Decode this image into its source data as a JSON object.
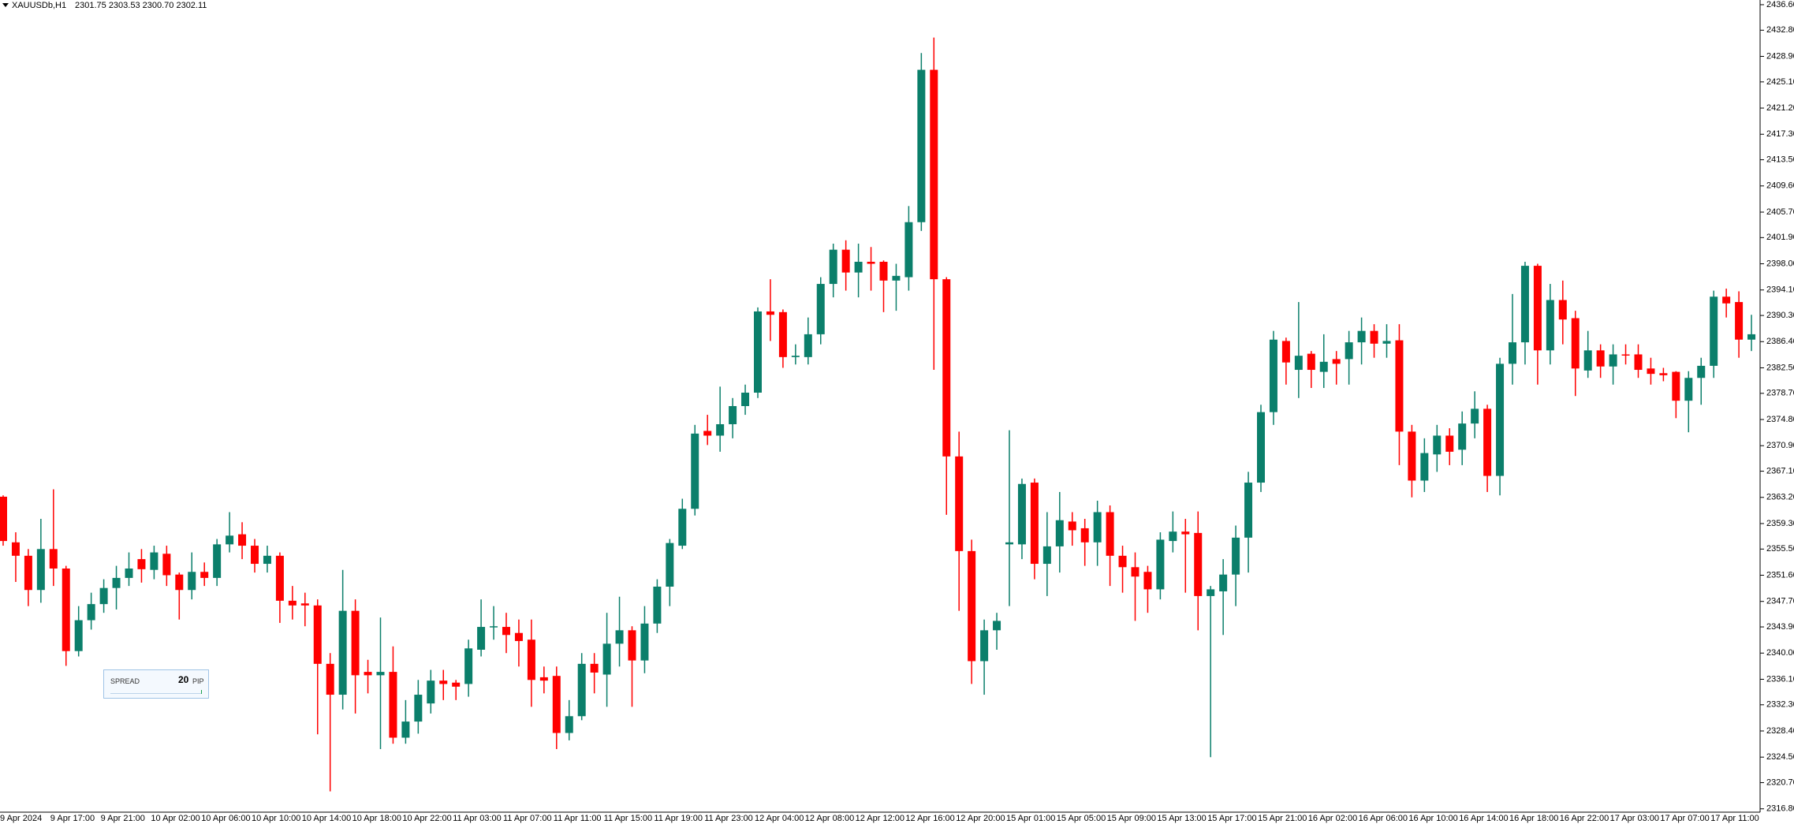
{
  "chart_data": {
    "type": "candlestick",
    "title": "XAUUSDb,H1",
    "header_quote": "2301.75 2303.53 2300.70 2302.11",
    "spread_widget": {
      "label": "SPREAD",
      "value": "20",
      "unit": "PIP"
    },
    "up_color": "#0b7f6b",
    "down_color": "#ff0000",
    "categories": [
      "9 Apr 2024",
      null,
      null,
      null,
      "9 Apr 17:00",
      null,
      null,
      null,
      "9 Apr 21:00",
      null,
      null,
      null,
      "10 Apr 02:00",
      null,
      null,
      null,
      "10 Apr 06:00",
      null,
      null,
      null,
      "10 Apr 10:00",
      null,
      null,
      null,
      "10 Apr 14:00",
      null,
      null,
      null,
      "10 Apr 18:00",
      null,
      null,
      null,
      "10 Apr 22:00",
      null,
      null,
      null,
      "11 Apr 03:00",
      null,
      null,
      null,
      "11 Apr 07:00",
      null,
      null,
      null,
      "11 Apr 11:00",
      null,
      null,
      null,
      "11 Apr 15:00",
      null,
      null,
      null,
      "11 Apr 19:00",
      null,
      null,
      null,
      "11 Apr 23:00",
      null,
      null,
      null,
      "12 Apr 04:00",
      null,
      null,
      null,
      "12 Apr 08:00",
      null,
      null,
      null,
      "12 Apr 12:00",
      null,
      null,
      null,
      "12 Apr 16:00",
      null,
      null,
      null,
      "12 Apr 20:00",
      null,
      null,
      null,
      "15 Apr 01:00",
      null,
      null,
      null,
      "15 Apr 05:00",
      null,
      null,
      null,
      "15 Apr 09:00",
      null,
      null,
      null,
      "15 Apr 13:00",
      null,
      null,
      null,
      "15 Apr 17:00",
      null,
      null,
      null,
      "15 Apr 21:00",
      null,
      null,
      null,
      "16 Apr 02:00",
      null,
      null,
      null,
      "16 Apr 06:00",
      null,
      null,
      null,
      "16 Apr 10:00",
      null,
      null,
      null,
      "16 Apr 14:00",
      null,
      null,
      null,
      "16 Apr 18:00",
      null,
      null,
      null,
      "16 Apr 22:00",
      null,
      null,
      null,
      "17 Apr 03:00",
      null,
      null,
      null,
      "17 Apr 07:00",
      null,
      null,
      null,
      "17 Apr 11:00",
      null,
      null,
      null
    ],
    "open": [
      2363.3,
      2356.5,
      2354.5,
      2349.4,
      2355.5,
      2352.6,
      2340.3,
      2344.9,
      2347.3,
      2349.7,
      2351.2,
      2354,
      2352.4,
      2354.8,
      2351.7,
      2349.4,
      2352.1,
      2351.2,
      2356.2,
      2357.7,
      2356,
      2353.3,
      2354.5,
      2347.8,
      2347.4,
      2347.1,
      2338.4,
      2333.8,
      2346.3,
      2337.2,
      2336.7,
      2337.2,
      2327.4,
      2329.8,
      2332.5,
      2335.9,
      2335.6,
      2335.4,
      2340.5,
      2343.9,
      2343.9,
      2343,
      2342,
      2336.4,
      2336.6,
      2328.1,
      2330.6,
      2338.4,
      2336.8,
      2341.4,
      2343.4,
      2338.9,
      2344.4,
      2349.9,
      2356,
      2361.5,
      2373.1,
      2372.4,
      2374.1,
      2376.8,
      2378.8,
      2390.9,
      2390.8,
      2384.1,
      2384.1,
      2387.5,
      2395,
      2400.1,
      2396.7,
      2398.3,
      2398.3,
      2395.5,
      2396,
      2404.2,
      2426.9,
      2395.7,
      2369.3,
      2355.2,
      2338.8,
      2343.4,
      2356.2,
      2356.2,
      2365.4,
      2353.3,
      2355.9,
      2359.6,
      2358.6,
      2356.5,
      2361,
      2354.5,
      2352.8,
      2352.1,
      2349.5,
      2356.7,
      2358.1,
      2357.9,
      2348.5,
      2349.2,
      2351.7,
      2357.2,
      2365.4,
      2375.9,
      2386.5,
      2382.2,
      2384.6,
      2381.9,
      2383.8,
      2383.8,
      2386.3,
      2388,
      2386.1,
      2386.6,
      2373,
      2365.7,
      2369.6,
      2372.4,
      2370.3,
      2374.2,
      2376.4,
      2366.4,
      2383.1,
      2386.3,
      2397.7,
      2385.1,
      2392.6,
      2389.9,
      2382.1,
      2385.1,
      2382.7,
      2384.5,
      2384.5,
      2382.4,
      2381.7,
      2381.9,
      2377.6,
      2381,
      2382.8,
      2393.1,
      2392.3,
      2386.7
    ],
    "high": [
      2363.5,
      2358,
      2355.5,
      2360,
      2364.4,
      2353,
      2347,
      2349,
      2351,
      2353,
      2355,
      2355.5,
      2356,
      2356,
      2352,
      2355,
      2353.5,
      2357,
      2361,
      2359.5,
      2357,
      2356,
      2355,
      2350,
      2349,
      2348,
      2340,
      2352.4,
      2348,
      2339,
      2345.3,
      2341,
      2333,
      2336,
      2337.5,
      2337.5,
      2336,
      2342,
      2348,
      2347,
      2346,
      2345,
      2345,
      2338,
      2338,
      2333,
      2340,
      2340,
      2346,
      2348.4,
      2344,
      2347,
      2351,
      2357,
      2363,
      2374,
      2375.5,
      2379.7,
      2378,
      2380,
      2391.5,
      2395.7,
      2391.2,
      2386,
      2390,
      2396,
      2401,
      2401.5,
      2401,
      2400.5,
      2398.5,
      2398,
      2406.6,
      2429.4,
      2431.7,
      2396,
      2373,
      2356.9,
      2345,
      2346,
      2373.2,
      2366,
      2366,
      2361,
      2364,
      2361,
      2360,
      2362.7,
      2362,
      2356,
      2355,
      2353,
      2358,
      2361.1,
      2360,
      2361.1,
      2350,
      2354,
      2359,
      2367,
      2377,
      2388,
      2387,
      2392.3,
      2385,
      2387.5,
      2385,
      2388,
      2390,
      2389,
      2389,
      2389,
      2374,
      2372,
      2374,
      2373.5,
      2376,
      2379,
      2377,
      2384,
      2393.5,
      2398.3,
      2398,
      2395,
      2395.5,
      2391,
      2388,
      2386,
      2386,
      2386,
      2386,
      2384,
      2382.5,
      2382,
      2382,
      2384,
      2394,
      2394.3,
      2393.9,
      2390.4
    ],
    "low": [
      2356,
      2350.6,
      2347,
      2347.5,
      2350,
      2338.1,
      2339.5,
      2343.5,
      2346,
      2346.5,
      2350,
      2350.5,
      2351,
      2350,
      2345,
      2348,
      2350,
      2350,
      2355,
      2354,
      2352,
      2352,
      2344.5,
      2345,
      2344,
      2327.9,
      2319.4,
      2331.6,
      2331,
      2334,
      2325.7,
      2326.5,
      2326.5,
      2328,
      2331,
      2333,
      2333,
      2333.5,
      2339.5,
      2342,
      2340,
      2338,
      2332,
      2334,
      2325.7,
      2327,
      2330,
      2334,
      2332,
      2338,
      2332,
      2337,
      2343,
      2347,
      2355.5,
      2360.5,
      2371,
      2370,
      2372,
      2375.5,
      2378,
      2386.5,
      2382.5,
      2383,
      2383,
      2386,
      2393,
      2394,
      2393,
      2394,
      2390.8,
      2391,
      2394,
      2402.9,
      2382.2,
      2360.6,
      2346.3,
      2335.4,
      2333.8,
      2340.5,
      2347,
      2354,
      2351,
      2348.5,
      2352,
      2356,
      2353,
      2353,
      2350,
      2349,
      2344.8,
      2346,
      2348,
      2355,
      2349,
      2343.4,
      2324.5,
      2342.7,
      2347,
      2352,
      2364,
      2374,
      2380,
      2378,
      2379.5,
      2379.5,
      2380,
      2380,
      2383,
      2384,
      2384,
      2368,
      2363.2,
      2364,
      2367,
      2368,
      2368,
      2372,
      2364,
      2363.5,
      2380,
      2383,
      2380,
      2383,
      2386,
      2378.3,
      2381,
      2381,
      2380,
      2383,
      2381,
      2380,
      2380.5,
      2375,
      2372.9,
      2377,
      2381,
      2390,
      2384,
      2385
    ],
    "close": [
      2356.7,
      2354.5,
      2349.4,
      2355.5,
      2352.6,
      2340.3,
      2344.9,
      2347.3,
      2349.7,
      2351.2,
      2352.6,
      2352.5,
      2355,
      2351.6,
      2349.4,
      2352.1,
      2351.2,
      2356.2,
      2357.5,
      2356,
      2353.3,
      2354.5,
      2347.8,
      2347.1,
      2347.1,
      2338.4,
      2333.8,
      2346.3,
      2336.7,
      2336.7,
      2337.2,
      2327.4,
      2329.8,
      2333.8,
      2335.9,
      2335.4,
      2335,
      2340.7,
      2343.9,
      2344,
      2342.7,
      2341.8,
      2336,
      2335.9,
      2328.1,
      2330.6,
      2338.4,
      2337.1,
      2341.4,
      2343.4,
      2338.9,
      2344.4,
      2349.9,
      2356.4,
      2361.5,
      2372.7,
      2372.4,
      2374.1,
      2376.8,
      2378.8,
      2390.9,
      2390.4,
      2384.1,
      2384.3,
      2387.5,
      2395,
      2400.1,
      2396.7,
      2398.3,
      2398,
      2395.5,
      2396.2,
      2404.2,
      2426.9,
      2395.7,
      2369.3,
      2355.2,
      2338.8,
      2343.4,
      2344.8,
      2356.5,
      2365.2,
      2353.3,
      2355.9,
      2359.8,
      2358.3,
      2356.5,
      2361,
      2354.5,
      2352.8,
      2351.4,
      2349.5,
      2356.9,
      2358.1,
      2357.7,
      2348.5,
      2349.5,
      2351.7,
      2357.2,
      2365.4,
      2375.9,
      2386.7,
      2383.3,
      2384.3,
      2382.2,
      2383.4,
      2383.1,
      2386.3,
      2388,
      2386.1,
      2386.5,
      2373,
      2365.7,
      2369.8,
      2372.4,
      2370,
      2374.2,
      2376.4,
      2366.4,
      2383.1,
      2386.3,
      2397.7,
      2385.1,
      2392.6,
      2389.7,
      2382.4,
      2385.1,
      2382.7,
      2384.5,
      2384.4,
      2382.2,
      2381.6,
      2381.4,
      2377.6,
      2381,
      2382.8,
      2393.1,
      2392.1,
      2386.7,
      2387.5
    ],
    "ylim": [
      2316.3,
      2437.3
    ],
    "yticks": [
      {
        "value": 2436.6,
        "label": "2436.60"
      },
      {
        "value": 2432.8,
        "label": "2432.80"
      },
      {
        "value": 2428.9,
        "label": "2428.90"
      },
      {
        "value": 2425.1,
        "label": "2425.10"
      },
      {
        "value": 2421.2,
        "label": "2421.20"
      },
      {
        "value": 2417.3,
        "label": "2417.30"
      },
      {
        "value": 2413.5,
        "label": "2413.50"
      },
      {
        "value": 2409.6,
        "label": "2409.60"
      },
      {
        "value": 2405.7,
        "label": "2405.70"
      },
      {
        "value": 2401.9,
        "label": "2401.90"
      },
      {
        "value": 2398,
        "label": "2398.00"
      },
      {
        "value": 2394.1,
        "label": "2394.10"
      },
      {
        "value": 2390.3,
        "label": "2390.30"
      },
      {
        "value": 2386.4,
        "label": "2386.40"
      },
      {
        "value": 2382.5,
        "label": "2382.50"
      },
      {
        "value": 2378.7,
        "label": "2378.70"
      },
      {
        "value": 2374.8,
        "label": "2374.80"
      },
      {
        "value": 2370.9,
        "label": "2370.90"
      },
      {
        "value": 2367.1,
        "label": "2367.10"
      },
      {
        "value": 2363.2,
        "label": "2363.20"
      },
      {
        "value": 2359.3,
        "label": "2359.30"
      },
      {
        "value": 2355.5,
        "label": "2355.50"
      },
      {
        "value": 2351.6,
        "label": "2351.60"
      },
      {
        "value": 2347.7,
        "label": "2347.70"
      },
      {
        "value": 2343.9,
        "label": "2343.90"
      },
      {
        "value": 2340,
        "label": "2340.00"
      },
      {
        "value": 2336.1,
        "label": "2336.10"
      },
      {
        "value": 2332.3,
        "label": "2332.30"
      },
      {
        "value": 2328.4,
        "label": "2328.40"
      },
      {
        "value": 2324.5,
        "label": "2324.50"
      },
      {
        "value": 2320.7,
        "label": "2320.70"
      },
      {
        "value": 2316.8,
        "label": "2316.80"
      }
    ],
    "grid": false
  }
}
